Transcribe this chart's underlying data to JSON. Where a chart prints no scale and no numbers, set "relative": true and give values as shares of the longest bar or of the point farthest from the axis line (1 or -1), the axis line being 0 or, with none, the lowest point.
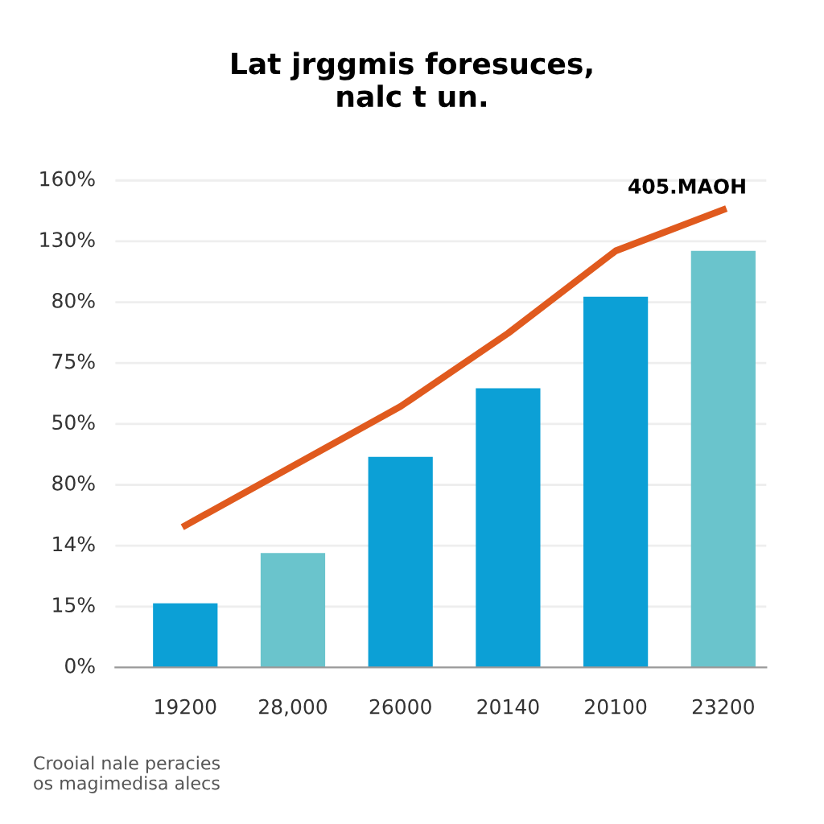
{
  "chart_data": {
    "type": "bar",
    "title": "Lat jrggmis foresuces,\nnalc t un.",
    "categories": [
      "19200",
      "28,000",
      "26000",
      "20140",
      "20100",
      "23200"
    ],
    "relative": true,
    "series": [
      {
        "colors": [
          "#0ca0d6",
          "#6ac4cc",
          "#0ca0d6",
          "#0ca0d6",
          "#0ca0d6",
          "#6ac4cc"
        ],
        "values": [
          0.14,
          0.25,
          0.46,
          0.61,
          0.81,
          0.91
        ]
      },
      {
        "type": "line",
        "color": "#e05a1e",
        "values": [
          0.31,
          0.44,
          0.57,
          0.73,
          0.91,
          1.0
        ]
      }
    ],
    "grid": "y",
    "line_style": "solid",
    "marker": "none",
    "annotations": [
      "405.MAOH",
      "Crooial nale peracies\nos magimedisa alecs",
      "160%",
      "130%",
      "80%",
      "75%",
      "50%",
      "80%",
      "14%",
      "15%",
      "0%"
    ]
  }
}
